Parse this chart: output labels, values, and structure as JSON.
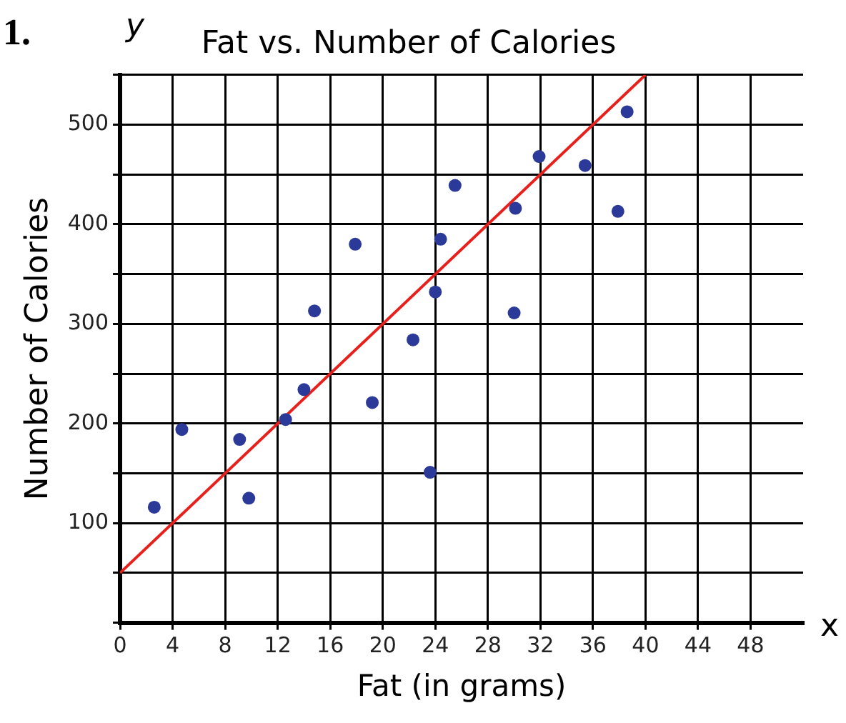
{
  "chart_data": {
    "type": "scatter",
    "title": "Fat vs. Number of Calories",
    "xlabel": "Fat (in grams)",
    "ylabel": "Number of Calories",
    "annotations": [
      "1.",
      "y",
      "x"
    ],
    "series": [
      {
        "color": "#2b3a98",
        "marker": "circle",
        "x": [
          2.6,
          4.7,
          9.1,
          9.8,
          12.6,
          14.0,
          14.8,
          17.9,
          19.2,
          22.3,
          23.6,
          24.0,
          24.4,
          25.5,
          30.0,
          30.1,
          31.9,
          35.4,
          37.9,
          38.6
        ],
        "values": [
          116,
          194,
          184,
          125,
          204,
          234,
          313,
          380,
          221,
          284,
          151,
          332,
          385,
          439,
          311,
          416,
          468,
          459,
          413,
          513
        ]
      },
      {
        "type": "line",
        "color": "#e8201c",
        "x": [
          0,
          40
        ],
        "values": [
          50,
          550
        ]
      }
    ],
    "xlim": [
      0,
      52
    ],
    "xticks": [
      0,
      4,
      8,
      12,
      16,
      20,
      24,
      28,
      32,
      36,
      40,
      44,
      48
    ],
    "ylim": [
      0,
      550
    ],
    "yticks": [
      {
        "value": 0,
        "label": null
      },
      {
        "value": 50,
        "label": null
      },
      100,
      {
        "value": 150,
        "label": null
      },
      200,
      {
        "value": 250,
        "label": null
      },
      300,
      {
        "value": 350,
        "label": null
      },
      400,
      {
        "value": 450,
        "label": null
      },
      500,
      {
        "value": 550,
        "label": null
      }
    ],
    "grid": true,
    "line_style": "solid"
  }
}
